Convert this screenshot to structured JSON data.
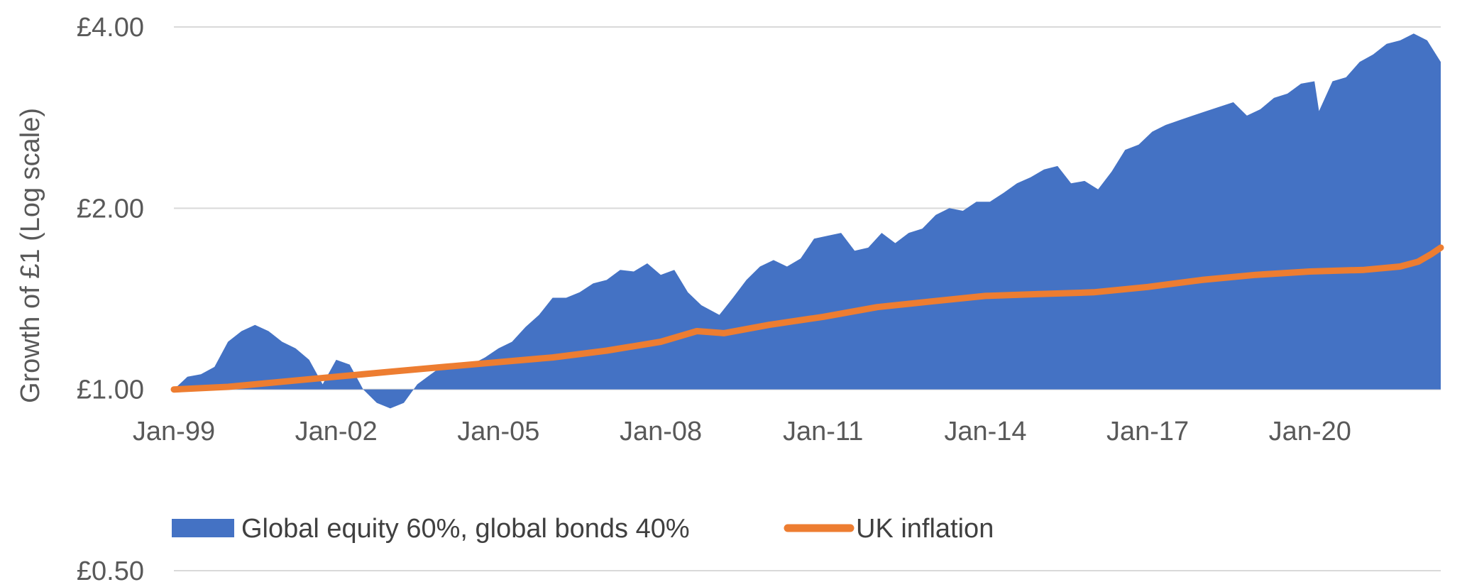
{
  "chart_data": {
    "type": "area",
    "title": "",
    "xlabel": "",
    "ylabel": "Growth of £1  (Log scale)",
    "yscale": "log",
    "ylim": [
      0.5,
      4.0
    ],
    "yticks": [
      {
        "value": 0.5,
        "label": "£0.50"
      },
      {
        "value": 1.0,
        "label": "£1.00"
      },
      {
        "value": 2.0,
        "label": "£2.00"
      },
      {
        "value": 4.0,
        "label": "£4.00"
      }
    ],
    "xlim": [
      "1999-01",
      "2022-06"
    ],
    "xticks": [
      "Jan-99",
      "Jan-02",
      "Jan-05",
      "Jan-08",
      "Jan-11",
      "Jan-14",
      "Jan-17",
      "Jan-20"
    ],
    "grid": "horizontal",
    "legend_position": "bottom",
    "series": [
      {
        "name": "Global equity 60%, global bonds 40%",
        "kind": "area",
        "color": "#4472C4",
        "points": [
          [
            "1999-01",
            1.0
          ],
          [
            "1999-04",
            1.05
          ],
          [
            "1999-07",
            1.06
          ],
          [
            "1999-10",
            1.09
          ],
          [
            "2000-01",
            1.2
          ],
          [
            "2000-04",
            1.25
          ],
          [
            "2000-07",
            1.28
          ],
          [
            "2000-10",
            1.25
          ],
          [
            "2001-01",
            1.2
          ],
          [
            "2001-04",
            1.17
          ],
          [
            "2001-07",
            1.12
          ],
          [
            "2001-10",
            1.02
          ],
          [
            "2002-01",
            1.12
          ],
          [
            "2002-04",
            1.1
          ],
          [
            "2002-07",
            1.0
          ],
          [
            "2002-10",
            0.95
          ],
          [
            "2003-01",
            0.93
          ],
          [
            "2003-04",
            0.95
          ],
          [
            "2003-07",
            1.02
          ],
          [
            "2003-10",
            1.06
          ],
          [
            "2004-01",
            1.1
          ],
          [
            "2004-04",
            1.1
          ],
          [
            "2004-07",
            1.1
          ],
          [
            "2004-10",
            1.13
          ],
          [
            "2005-01",
            1.17
          ],
          [
            "2005-04",
            1.2
          ],
          [
            "2005-07",
            1.27
          ],
          [
            "2005-10",
            1.33
          ],
          [
            "2006-01",
            1.42
          ],
          [
            "2006-04",
            1.42
          ],
          [
            "2006-07",
            1.45
          ],
          [
            "2006-10",
            1.5
          ],
          [
            "2007-01",
            1.52
          ],
          [
            "2007-04",
            1.58
          ],
          [
            "2007-07",
            1.57
          ],
          [
            "2007-10",
            1.62
          ],
          [
            "2008-01",
            1.55
          ],
          [
            "2008-04",
            1.58
          ],
          [
            "2008-07",
            1.45
          ],
          [
            "2008-10",
            1.38
          ],
          [
            "2009-02",
            1.33
          ],
          [
            "2009-05",
            1.42
          ],
          [
            "2009-08",
            1.52
          ],
          [
            "2009-11",
            1.6
          ],
          [
            "2010-02",
            1.64
          ],
          [
            "2010-05",
            1.6
          ],
          [
            "2010-08",
            1.65
          ],
          [
            "2010-11",
            1.78
          ],
          [
            "2011-02",
            1.8
          ],
          [
            "2011-05",
            1.82
          ],
          [
            "2011-08",
            1.7
          ],
          [
            "2011-11",
            1.72
          ],
          [
            "2012-02",
            1.82
          ],
          [
            "2012-05",
            1.75
          ],
          [
            "2012-08",
            1.82
          ],
          [
            "2012-11",
            1.85
          ],
          [
            "2013-02",
            1.95
          ],
          [
            "2013-05",
            2.0
          ],
          [
            "2013-08",
            1.98
          ],
          [
            "2013-11",
            2.05
          ],
          [
            "2014-02",
            2.05
          ],
          [
            "2014-05",
            2.12
          ],
          [
            "2014-08",
            2.2
          ],
          [
            "2014-11",
            2.25
          ],
          [
            "2015-02",
            2.32
          ],
          [
            "2015-05",
            2.35
          ],
          [
            "2015-08",
            2.2
          ],
          [
            "2015-11",
            2.22
          ],
          [
            "2016-02",
            2.15
          ],
          [
            "2016-05",
            2.3
          ],
          [
            "2016-08",
            2.5
          ],
          [
            "2016-11",
            2.55
          ],
          [
            "2017-02",
            2.68
          ],
          [
            "2017-05",
            2.75
          ],
          [
            "2017-08",
            2.8
          ],
          [
            "2017-11",
            2.85
          ],
          [
            "2018-02",
            2.9
          ],
          [
            "2018-05",
            2.95
          ],
          [
            "2018-08",
            3.0
          ],
          [
            "2018-11",
            2.85
          ],
          [
            "2019-02",
            2.92
          ],
          [
            "2019-05",
            3.05
          ],
          [
            "2019-08",
            3.1
          ],
          [
            "2019-11",
            3.22
          ],
          [
            "2020-02",
            3.25
          ],
          [
            "2020-03",
            2.9
          ],
          [
            "2020-06",
            3.25
          ],
          [
            "2020-09",
            3.3
          ],
          [
            "2020-12",
            3.5
          ],
          [
            "2021-03",
            3.6
          ],
          [
            "2021-06",
            3.75
          ],
          [
            "2021-09",
            3.8
          ],
          [
            "2021-12",
            3.9
          ],
          [
            "2022-03",
            3.8
          ],
          [
            "2022-06",
            3.5
          ]
        ]
      },
      {
        "name": "UK inflation",
        "kind": "line",
        "color": "#ED7D31",
        "points": [
          [
            "1999-01",
            1.0
          ],
          [
            "2000-01",
            1.01
          ],
          [
            "2001-01",
            1.03
          ],
          [
            "2002-01",
            1.05
          ],
          [
            "2003-01",
            1.07
          ],
          [
            "2004-01",
            1.09
          ],
          [
            "2005-01",
            1.11
          ],
          [
            "2006-01",
            1.13
          ],
          [
            "2007-01",
            1.16
          ],
          [
            "2008-01",
            1.2
          ],
          [
            "2008-09",
            1.25
          ],
          [
            "2009-03",
            1.24
          ],
          [
            "2010-01",
            1.28
          ],
          [
            "2011-01",
            1.32
          ],
          [
            "2012-01",
            1.37
          ],
          [
            "2013-01",
            1.4
          ],
          [
            "2014-01",
            1.43
          ],
          [
            "2015-01",
            1.44
          ],
          [
            "2016-01",
            1.45
          ],
          [
            "2017-01",
            1.48
          ],
          [
            "2018-01",
            1.52
          ],
          [
            "2019-01",
            1.55
          ],
          [
            "2020-01",
            1.57
          ],
          [
            "2021-01",
            1.58
          ],
          [
            "2021-09",
            1.6
          ],
          [
            "2022-01",
            1.63
          ],
          [
            "2022-04",
            1.68
          ],
          [
            "2022-06",
            1.72
          ]
        ]
      }
    ]
  }
}
